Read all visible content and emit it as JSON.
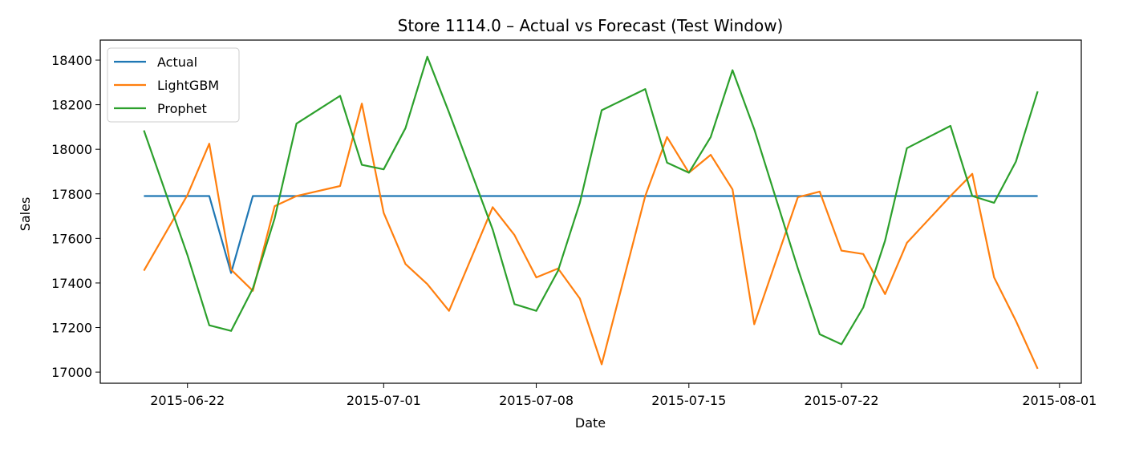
{
  "chart_data": {
    "type": "line",
    "title": "Store 1114.0 – Actual vs Forecast (Test Window)",
    "xlabel": "Date",
    "ylabel": "Sales",
    "x": [
      "2015-06-20",
      "2015-06-22",
      "2015-06-23",
      "2015-06-24",
      "2015-06-25",
      "2015-06-26",
      "2015-06-27",
      "2015-06-29",
      "2015-06-30",
      "2015-07-01",
      "2015-07-02",
      "2015-07-03",
      "2015-07-04",
      "2015-07-06",
      "2015-07-07",
      "2015-07-08",
      "2015-07-09",
      "2015-07-10",
      "2015-07-11",
      "2015-07-13",
      "2015-07-14",
      "2015-07-15",
      "2015-07-16",
      "2015-07-17",
      "2015-07-18",
      "2015-07-20",
      "2015-07-21",
      "2015-07-22",
      "2015-07-23",
      "2015-07-24",
      "2015-07-25",
      "2015-07-27",
      "2015-07-28",
      "2015-07-29",
      "2015-07-30",
      "2015-07-31"
    ],
    "series": [
      {
        "name": "Actual",
        "color": "#1f77b4",
        "values": [
          17790,
          17790,
          17790,
          17445,
          17790,
          17790,
          17790,
          17790,
          17790,
          17790,
          17790,
          17790,
          17790,
          17790,
          17790,
          17790,
          17790,
          17790,
          17790,
          17790,
          17790,
          17790,
          17790,
          17790,
          17790,
          17790,
          17790,
          17790,
          17790,
          17790,
          17790,
          17790,
          17790,
          17790,
          17790,
          17790
        ]
      },
      {
        "name": "LightGBM",
        "color": "#ff7f0e",
        "values": [
          17455,
          17795,
          18025,
          17460,
          17365,
          17745,
          17790,
          17835,
          18205,
          17715,
          17485,
          17395,
          17275,
          17740,
          17615,
          17425,
          17465,
          17330,
          17035,
          17790,
          18055,
          17895,
          17975,
          17820,
          17215,
          17785,
          17810,
          17545,
          17530,
          17350,
          17580,
          17790,
          17890,
          17425,
          17230,
          17015
        ]
      },
      {
        "name": "Prophet",
        "color": "#2ca02c",
        "values": [
          18085,
          17525,
          17210,
          17185,
          17375,
          17690,
          18115,
          18240,
          17930,
          17910,
          18095,
          18415,
          18165,
          17640,
          17305,
          17275,
          17455,
          17760,
          18175,
          18270,
          17940,
          17895,
          18055,
          18355,
          18090,
          17465,
          17170,
          17125,
          17290,
          17590,
          18005,
          18105,
          17790,
          17760,
          17945,
          18260
        ]
      }
    ],
    "xticks": [
      "2015-06-22",
      "2015-07-01",
      "2015-07-08",
      "2015-07-15",
      "2015-07-22",
      "2015-08-01"
    ],
    "yticks": [
      17000,
      17200,
      17400,
      17600,
      17800,
      18000,
      18200,
      18400
    ],
    "ylim": [
      16950,
      18490
    ],
    "xlim": [
      "2015-06-18",
      "2015-08-02"
    ],
    "grid": false,
    "legend_position": "top-left"
  }
}
